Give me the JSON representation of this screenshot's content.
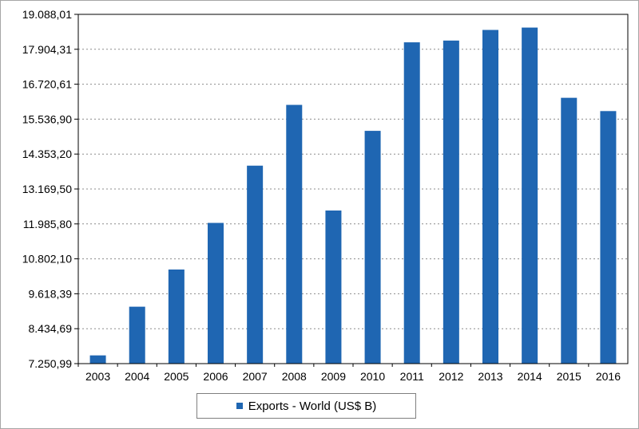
{
  "chart_data": {
    "type": "bar",
    "categories": [
      "2003",
      "2004",
      "2005",
      "2006",
      "2007",
      "2008",
      "2009",
      "2010",
      "2011",
      "2012",
      "2013",
      "2014",
      "2015",
      "2016"
    ],
    "series": [
      {
        "name": "Exports - World (US$ B)",
        "values": [
          7530,
          9180,
          10440,
          12020,
          13960,
          16020,
          12440,
          15140,
          18140,
          18200,
          18560,
          18640,
          16260,
          15810
        ]
      }
    ],
    "y_ticks": [
      "7.250,99",
      "8.434,69",
      "9.618,39",
      "10.802,10",
      "11.985,80",
      "13.169,50",
      "14.353,20",
      "15.536,90",
      "16.720,61",
      "17.904,31",
      "19.088,01"
    ],
    "ylim": [
      7250.99,
      19088.01
    ],
    "grid": true,
    "legend_position": "bottom",
    "bar_color": "#1f66b2",
    "title": "",
    "xlabel": "",
    "ylabel": ""
  }
}
